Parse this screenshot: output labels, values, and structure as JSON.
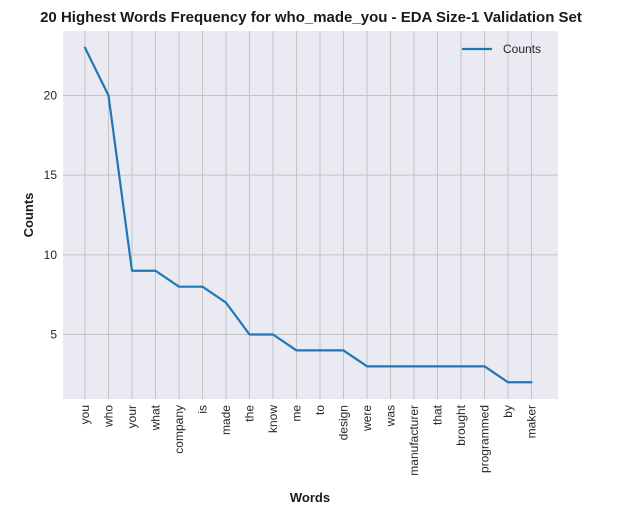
{
  "chart_data": {
    "type": "line",
    "title": "20 Highest Words Frequency for who_made_you - EDA Size-1 Validation Set",
    "xlabel": "Words",
    "ylabel": "Counts",
    "categories": [
      "you",
      "who",
      "your",
      "what",
      "company",
      "is",
      "made",
      "the",
      "know",
      "me",
      "to",
      "design",
      "were",
      "was",
      "manufacturer",
      "that",
      "brought",
      "programmed",
      "by",
      "maker"
    ],
    "series": [
      {
        "name": "Counts",
        "values": [
          23,
          20,
          9,
          9,
          8,
          8,
          7,
          5,
          5,
          4,
          4,
          4,
          3,
          3,
          3,
          3,
          3,
          3,
          2,
          2
        ]
      }
    ],
    "yticks": [
      5,
      10,
      15,
      20
    ],
    "ylim": [
      0.95,
      24.05
    ],
    "grid": true,
    "legend_position": "top-right",
    "colors": {
      "line": "#1f77b4",
      "plot_bg": "#eaeaf2",
      "grid": "#c4c4c4"
    }
  }
}
